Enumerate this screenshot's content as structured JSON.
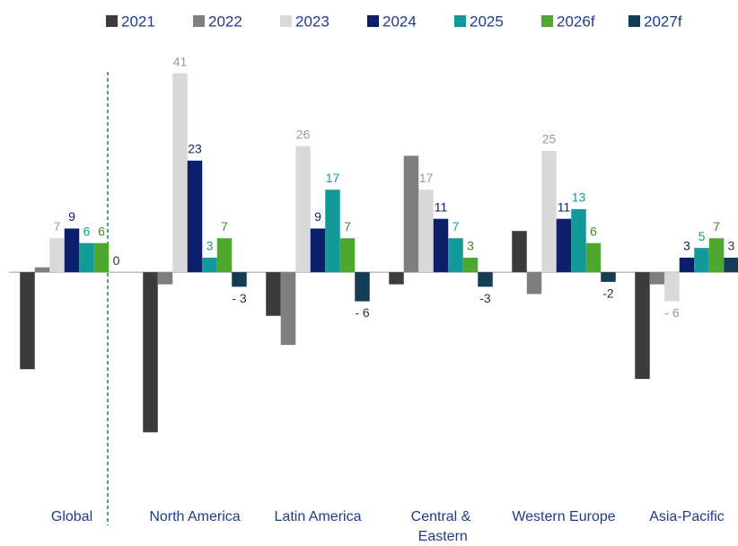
{
  "chart_data": {
    "type": "bar",
    "categories": [
      "Global",
      "North America",
      "Latin America",
      "Central & Eastern Europe",
      "Western Europe",
      "Asia-Pacific"
    ],
    "series": [
      {
        "name": "2021",
        "color": "#3b3b3b",
        "label_color": "#3b3b3b",
        "values": [
          -20,
          -33,
          -9,
          -2.5,
          8.5,
          -22
        ],
        "value_labels": [
          null,
          null,
          null,
          null,
          null,
          null
        ]
      },
      {
        "name": "2022",
        "color": "#7f7f7f",
        "label_color": "#7f7f7f",
        "values": [
          1,
          -2.5,
          -15,
          24,
          -4.5,
          -2.5
        ],
        "value_labels": [
          null,
          null,
          null,
          null,
          null,
          null
        ]
      },
      {
        "name": "2023",
        "color": "#d9d9d9",
        "label_color": "#9a9a9a",
        "values": [
          7,
          41,
          26,
          17,
          25,
          -6
        ],
        "value_labels": [
          "7",
          "41",
          "26",
          "17",
          "25",
          "- 6"
        ]
      },
      {
        "name": "2024",
        "color": "#0b1f6b",
        "label_color": "#0b1f6b",
        "values": [
          9,
          23,
          9,
          11,
          11,
          3
        ],
        "value_labels": [
          "9",
          "23",
          "9",
          "11",
          "11",
          "3"
        ]
      },
      {
        "name": "2025",
        "color": "#14999a",
        "label_color": "#14999a",
        "values": [
          6,
          3,
          17,
          7,
          13,
          5
        ],
        "value_labels": [
          "6",
          "3",
          "17",
          "7",
          "13",
          "5"
        ]
      },
      {
        "name": "2026f",
        "color": "#4ea72e",
        "label_color": "#3f8a24",
        "values": [
          6,
          7,
          7,
          3,
          6,
          7
        ],
        "value_labels": [
          "6",
          "7",
          "7",
          "3",
          "6",
          "7"
        ]
      },
      {
        "name": "2027f",
        "color": "#133c55",
        "label_color": "#333333",
        "values": [
          0,
          -3,
          -6,
          -3,
          -2,
          3
        ],
        "value_labels": [
          "0",
          "- 3",
          "- 6",
          "-3",
          "-2",
          "3"
        ]
      }
    ],
    "ylim": [
      -47,
      45
    ]
  }
}
